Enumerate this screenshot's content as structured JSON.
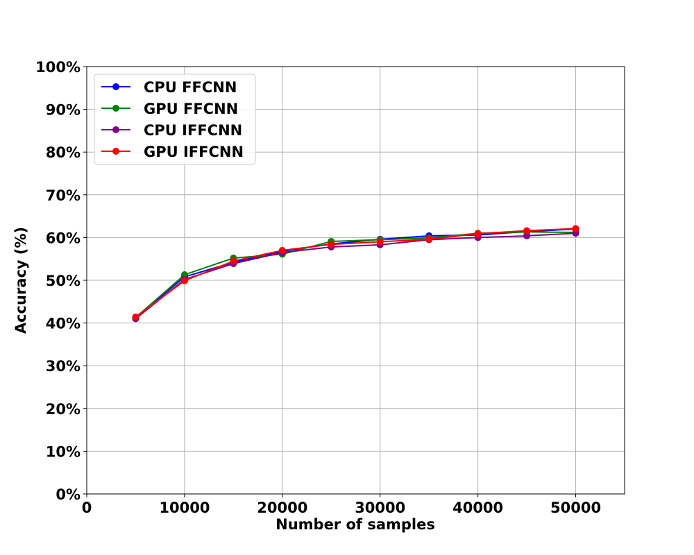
{
  "chart_data": {
    "type": "line",
    "title": "",
    "xlabel": "Number of samples",
    "ylabel": "Accuracy (%)",
    "xlim": [
      0,
      55000
    ],
    "ylim": [
      0,
      100
    ],
    "x": [
      5000,
      10000,
      15000,
      20000,
      25000,
      30000,
      35000,
      40000,
      45000,
      50000
    ],
    "x_ticks": [
      0,
      10000,
      20000,
      30000,
      40000,
      50000
    ],
    "x_tick_labels": [
      "0",
      "10000",
      "20000",
      "30000",
      "40000",
      "50000"
    ],
    "y_ticks": [
      0,
      10,
      20,
      30,
      40,
      50,
      60,
      70,
      80,
      90,
      100
    ],
    "y_tick_labels": [
      "0%",
      "10%",
      "20%",
      "30%",
      "40%",
      "50%",
      "60%",
      "70%",
      "80%",
      "90%",
      "100%"
    ],
    "grid": true,
    "legend_position": "top-left",
    "series": [
      {
        "name": "CPU FFCNN",
        "color": "#0000ff",
        "values": [
          41.2,
          50.8,
          54.2,
          56.8,
          58.5,
          59.6,
          60.4,
          60.6,
          61.4,
          62.0
        ]
      },
      {
        "name": "GPU FFCNN",
        "color": "#008000",
        "values": [
          41.3,
          51.3,
          55.2,
          56.1,
          59.1,
          59.5,
          59.9,
          61.0,
          61.3,
          61.2
        ]
      },
      {
        "name": "CPU IFFCNN",
        "color": "#800080",
        "values": [
          41.0,
          50.2,
          53.9,
          56.5,
          57.8,
          58.3,
          59.5,
          60.0,
          60.4,
          61.0
        ]
      },
      {
        "name": "GPU IFFCNN",
        "color": "#ff0000",
        "values": [
          41.4,
          49.9,
          54.5,
          57.0,
          58.4,
          59.0,
          59.6,
          60.9,
          61.6,
          62.1
        ]
      }
    ]
  }
}
